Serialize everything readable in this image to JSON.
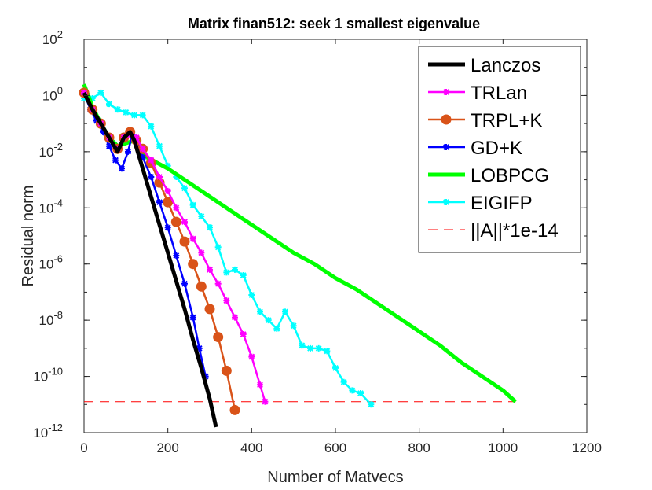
{
  "chart_data": {
    "type": "line",
    "title": "Matrix finan512: seek 1 smallest eigenvalue",
    "xlabel": "Number of Matvecs",
    "ylabel": "Residual norm",
    "xlim": [
      0,
      1200
    ],
    "ylim_log10": [
      -12,
      2
    ],
    "yscale": "log",
    "grid": false,
    "legend_position": "top-right",
    "x_ticks": [
      0,
      200,
      400,
      600,
      800,
      1000,
      1200
    ],
    "y_ticks": [
      {
        "base": "10",
        "exp": "2",
        "log": 2
      },
      {
        "base": "10",
        "exp": "0",
        "log": 0
      },
      {
        "base": "10",
        "exp": "-2",
        "log": -2
      },
      {
        "base": "10",
        "exp": "-4",
        "log": -4
      },
      {
        "base": "10",
        "exp": "-6",
        "log": -6
      },
      {
        "base": "10",
        "exp": "-8",
        "log": -8
      },
      {
        "base": "10",
        "exp": "-10",
        "log": -10
      },
      {
        "base": "10",
        "exp": "-12",
        "log": -12
      }
    ],
    "series": [
      {
        "name": "Lanczos",
        "color": "#000000",
        "marker": "none",
        "width": 5,
        "x": [
          0,
          20,
          40,
          60,
          80,
          95,
          110,
          120,
          140,
          160,
          180,
          200,
          220,
          240,
          260,
          280,
          300,
          315
        ],
        "log10_y": [
          0.1,
          -0.5,
          -1.0,
          -1.5,
          -2.0,
          -1.5,
          -1.3,
          -1.6,
          -2.6,
          -3.6,
          -4.6,
          -5.6,
          -6.6,
          -7.6,
          -8.7,
          -9.7,
          -10.8,
          -11.8
        ]
      },
      {
        "name": "TRLan",
        "color": "#ff00ff",
        "marker": "star",
        "width": 2.5,
        "x": [
          0,
          20,
          40,
          60,
          80,
          95,
          110,
          125,
          140,
          160,
          180,
          200,
          220,
          240,
          260,
          280,
          300,
          320,
          340,
          360,
          380,
          400,
          420,
          432
        ],
        "log10_y": [
          0.1,
          -0.5,
          -1.0,
          -1.5,
          -1.9,
          -1.5,
          -1.4,
          -1.5,
          -1.9,
          -2.3,
          -2.9,
          -3.4,
          -4.0,
          -4.5,
          -5.1,
          -5.6,
          -6.2,
          -6.7,
          -7.3,
          -7.9,
          -8.5,
          -9.3,
          -10.3,
          -10.9
        ]
      },
      {
        "name": "TRPL+K",
        "color": "#d95319",
        "marker": "circle",
        "width": 2.5,
        "x": [
          0,
          20,
          40,
          60,
          80,
          95,
          110,
          125,
          140,
          160,
          180,
          200,
          220,
          240,
          260,
          280,
          300,
          320,
          340,
          360
        ],
        "log10_y": [
          0.1,
          -0.5,
          -1.0,
          -1.5,
          -1.9,
          -1.5,
          -1.3,
          -1.6,
          -1.9,
          -2.4,
          -3.1,
          -3.8,
          -4.5,
          -5.2,
          -6.0,
          -6.8,
          -7.6,
          -8.6,
          -9.8,
          -11.2
        ]
      },
      {
        "name": "GD+K",
        "color": "#0000ff",
        "marker": "star",
        "width": 2.5,
        "x": [
          0,
          15,
          30,
          45,
          60,
          75,
          90,
          105,
          115,
          125,
          140,
          160,
          180,
          200,
          220,
          240,
          260,
          275,
          290
        ],
        "log10_y": [
          0.1,
          -0.5,
          -0.9,
          -1.3,
          -1.8,
          -2.3,
          -2.6,
          -2.0,
          -1.4,
          -1.7,
          -2.2,
          -2.9,
          -3.8,
          -4.7,
          -5.7,
          -6.7,
          -7.9,
          -9.0,
          -10.0
        ]
      },
      {
        "name": "LOBPCG",
        "color": "#00ff00",
        "marker": "none",
        "width": 5,
        "x": [
          0,
          20,
          40,
          60,
          80,
          100,
          120,
          150,
          200,
          250,
          300,
          350,
          400,
          450,
          500,
          550,
          600,
          650,
          700,
          750,
          800,
          850,
          900,
          950,
          1000,
          1030
        ],
        "log10_y": [
          0.4,
          -0.4,
          -1.0,
          -1.5,
          -1.8,
          -1.7,
          -1.6,
          -2.2,
          -2.6,
          -3.1,
          -3.6,
          -4.1,
          -4.6,
          -5.1,
          -5.6,
          -6.0,
          -6.5,
          -6.9,
          -7.4,
          -7.9,
          -8.4,
          -8.9,
          -9.5,
          -10.0,
          -10.5,
          -10.9
        ]
      },
      {
        "name": "EIGIFP",
        "color": "#00ffff",
        "marker": "star",
        "width": 2.5,
        "x": [
          0,
          20,
          40,
          60,
          80,
          100,
          120,
          140,
          160,
          180,
          200,
          220,
          240,
          260,
          280,
          300,
          320,
          340,
          360,
          380,
          400,
          420,
          440,
          460,
          480,
          500,
          520,
          540,
          560,
          580,
          600,
          620,
          640,
          660,
          685
        ],
        "log10_y": [
          -0.1,
          -0.1,
          0.1,
          -0.3,
          -0.5,
          -0.6,
          -0.7,
          -0.7,
          -1.1,
          -1.8,
          -2.5,
          -2.9,
          -3.3,
          -3.9,
          -4.3,
          -4.7,
          -5.4,
          -6.3,
          -6.2,
          -6.4,
          -7.1,
          -7.7,
          -8.0,
          -8.3,
          -7.7,
          -8.2,
          -8.9,
          -9.0,
          -9.0,
          -9.1,
          -9.7,
          -10.2,
          -10.5,
          -10.6,
          -11.0
        ]
      },
      {
        "name": "||A||*1e-14",
        "color": "#ff0000",
        "marker": "none",
        "width": 1,
        "dashed": true,
        "x": [
          0,
          1030
        ],
        "log10_y": [
          -10.9,
          -10.9
        ]
      }
    ]
  }
}
